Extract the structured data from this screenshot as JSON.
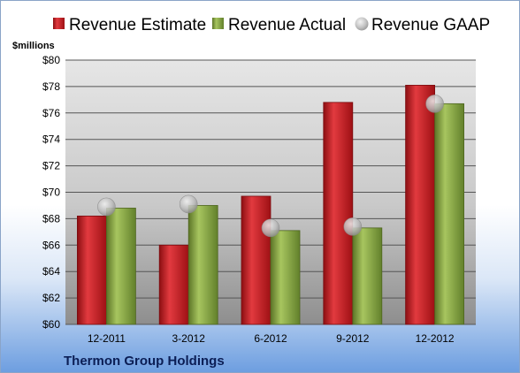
{
  "chart_data": {
    "type": "bar",
    "unit_label": "$millions",
    "categories": [
      "12-2011",
      "3-2012",
      "6-2012",
      "9-2012",
      "12-2012"
    ],
    "series": [
      {
        "name": "Revenue Estimate",
        "kind": "bar",
        "color": "#c4161c",
        "values": [
          68.2,
          66.0,
          69.7,
          76.8,
          78.1
        ]
      },
      {
        "name": "Revenue Actual",
        "kind": "bar",
        "color": "#7e9e3a",
        "values": [
          68.8,
          69.0,
          67.1,
          67.3,
          76.7
        ]
      },
      {
        "name": "Revenue GAAP",
        "kind": "marker",
        "color": "#b8b8b8",
        "values": [
          68.9,
          69.1,
          67.3,
          67.4,
          76.7
        ]
      }
    ],
    "ylim": [
      60,
      80
    ],
    "yticks": [
      "$60",
      "$62",
      "$64",
      "$66",
      "$68",
      "$70",
      "$72",
      "$74",
      "$76",
      "$78",
      "$80"
    ],
    "legend_position": "top",
    "grid": true
  },
  "footer": {
    "company": "Thermon Group Holdings"
  }
}
